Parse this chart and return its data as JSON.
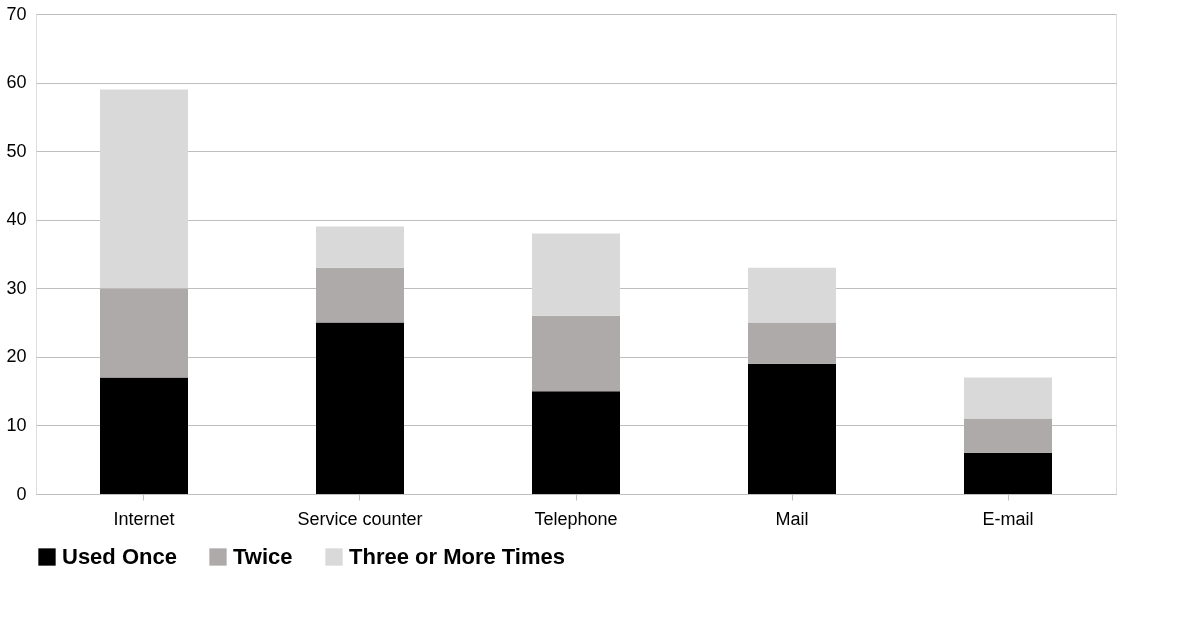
{
  "chart_data": {
    "type": "bar",
    "stacked": true,
    "categories": [
      "Internet",
      "Service counter",
      "Telephone",
      "Mail",
      "E-mail"
    ],
    "series": [
      {
        "name": "Used Once",
        "color": "#000000",
        "values": [
          17,
          25,
          15,
          19,
          6
        ]
      },
      {
        "name": "Twice",
        "color": "#aeaaaa",
        "values": [
          13,
          8,
          11,
          6,
          5
        ]
      },
      {
        "name": "Three or More Times",
        "color": "#d9d9d9",
        "values": [
          29,
          6,
          12,
          8,
          6
        ]
      }
    ],
    "ylim": [
      0,
      70
    ],
    "yticks": [
      0,
      10,
      20,
      30,
      40,
      50,
      60,
      70
    ],
    "grid": "y",
    "legend": "bottom"
  }
}
